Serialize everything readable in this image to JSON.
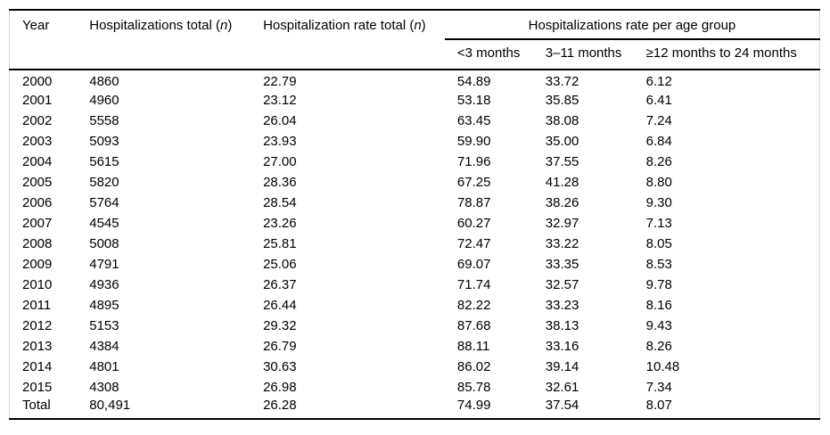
{
  "table": {
    "headers": {
      "year": "Year",
      "hosp_total": {
        "pre": "Hospitalizations total (",
        "n": "n",
        "post": ")"
      },
      "rate_total": {
        "pre": "Hospitalization rate total (",
        "n": "n",
        "post": ")"
      },
      "age_group_span": "Hospitalizations rate per age group",
      "sub": [
        "<3 months",
        "3–11 months",
        "≥12 months to 24 months"
      ]
    },
    "column_keys": [
      "year",
      "hospitalizations-total",
      "hospitalization-rate-total",
      "rate-under-3-months",
      "rate-3-11-months",
      "rate-12-to-24-months"
    ],
    "rows": [
      [
        "2000",
        "4860",
        "22.79",
        "54.89",
        "33.72",
        "6.12"
      ],
      [
        "2001",
        "4960",
        "23.12",
        "53.18",
        "35.85",
        "6.41"
      ],
      [
        "2002",
        "5558",
        "26.04",
        "63.45",
        "38.08",
        "7.24"
      ],
      [
        "2003",
        "5093",
        "23.93",
        "59.90",
        "35.00",
        "6.84"
      ],
      [
        "2004",
        "5615",
        "27.00",
        "71.96",
        "37.55",
        "8.26"
      ],
      [
        "2005",
        "5820",
        "28.36",
        "67.25",
        "41.28",
        "8.80"
      ],
      [
        "2006",
        "5764",
        "28.54",
        "78.87",
        "38.26",
        "9.30"
      ],
      [
        "2007",
        "4545",
        "23.26",
        "60.27",
        "32.97",
        "7.13"
      ],
      [
        "2008",
        "5008",
        "25.81",
        "72.47",
        "33.22",
        "8.05"
      ],
      [
        "2009",
        "4791",
        "25.06",
        "69.07",
        "33.35",
        "8.53"
      ],
      [
        "2010",
        "4936",
        "26.37",
        "71.74",
        "32.57",
        "9.78"
      ],
      [
        "2011",
        "4895",
        "26.44",
        "82.22",
        "33.23",
        "8.16"
      ],
      [
        "2012",
        "5153",
        "29.32",
        "87.68",
        "38.13",
        "9.43"
      ],
      [
        "2013",
        "4384",
        "26.79",
        "88.11",
        "33.16",
        "8.26"
      ],
      [
        "2014",
        "4801",
        "30.63",
        "86.02",
        "39.14",
        "10.48"
      ],
      [
        "2015",
        "4308",
        "26.98",
        "85.78",
        "32.61",
        "7.34"
      ],
      [
        "Total",
        "80,491",
        "26.28",
        "74.99",
        "37.54",
        "8.07"
      ]
    ]
  },
  "colors": {
    "rule": "#000000",
    "frame": "#d6d6d6",
    "text": "#000000",
    "background": "#ffffff"
  }
}
